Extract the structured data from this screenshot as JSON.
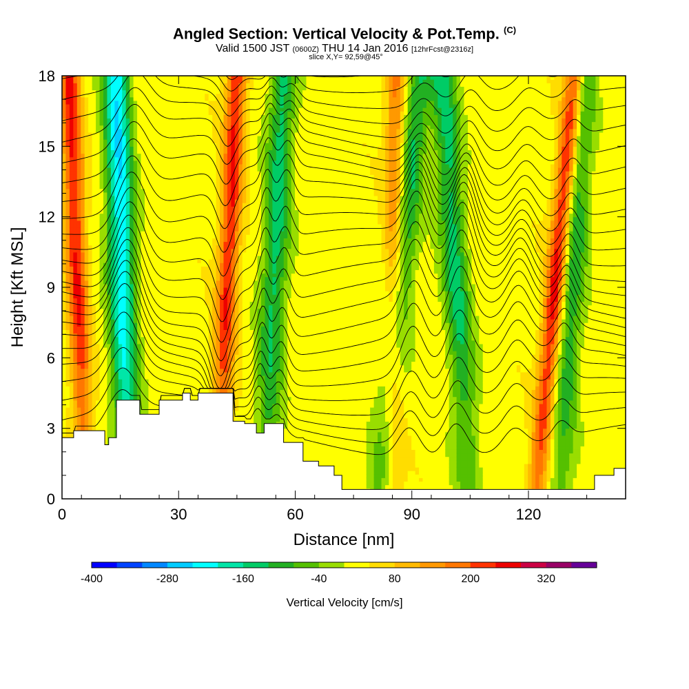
{
  "header": {
    "title": "Angled Section: Vertical Velocity & Pot.Temp.",
    "copyright": "(C)",
    "valid_prefix": "Valid 1500 JST",
    "valid_utc": "(0600Z)",
    "valid_date": "THU 14 Jan 2016",
    "forecast": "[12hrFcst@2316z]",
    "slice": "slice X,Y= 92,59@45°"
  },
  "chart_data": {
    "type": "heatmap",
    "title": "Angled Section: Vertical Velocity & Pot.Temp.",
    "xlabel": "Distance [nm]",
    "ylabel": "Height [Kft MSL]",
    "xlim": [
      0,
      145
    ],
    "ylim": [
      0,
      18
    ],
    "x_ticks": [
      0,
      30,
      60,
      90,
      120
    ],
    "y_ticks": [
      0,
      3,
      6,
      9,
      12,
      15,
      18
    ],
    "grid": false,
    "field": "Vertical Velocity [cm/s]",
    "contours": "Potential Temperature",
    "colorbar": {
      "title": "Vertical Velocity [cm/s]",
      "levels": [
        -400,
        -360,
        -320,
        -280,
        -240,
        -200,
        -160,
        -120,
        -80,
        -40,
        0,
        40,
        80,
        120,
        160,
        200,
        240,
        280,
        320,
        360
      ],
      "tick_labels": [
        "-400",
        "-280",
        "-160",
        "-40",
        "80",
        "200",
        "320"
      ],
      "colors": [
        "#0000ff",
        "#0044ff",
        "#0088ff",
        "#00ccff",
        "#00ffff",
        "#00e6a8",
        "#00cc66",
        "#22b022",
        "#55c000",
        "#99dd00",
        "#ffff00",
        "#ffdd00",
        "#ffbb00",
        "#ff9900",
        "#ff7700",
        "#ff3300",
        "#ee0000",
        "#cc0044",
        "#990066",
        "#660099"
      ]
    },
    "updraft_bands": [
      {
        "x_low": 6,
        "x_top": 2,
        "peak": 220
      },
      {
        "x_low": 40,
        "x_top": 45,
        "peak": 220
      },
      {
        "x_low": 85,
        "x_top": 86,
        "peak": 150
      },
      {
        "x_low": 122,
        "x_top": 132,
        "peak": 260
      }
    ],
    "downdraft_bands": [
      {
        "x_low": 17,
        "x_top": 14,
        "peak": -260
      },
      {
        "x_low": 52,
        "x_top": 57,
        "peak": -160
      },
      {
        "x_low": 82,
        "x_top": 92,
        "peak": -150
      },
      {
        "x_low": 105,
        "x_top": 98,
        "peak": -160
      },
      {
        "x_low": 128,
        "x_top": 134,
        "peak": -150
      }
    ],
    "terrain_kft": [
      [
        0,
        2.6
      ],
      [
        3,
        2.9
      ],
      [
        10,
        2.9
      ],
      [
        11,
        2.3
      ],
      [
        12,
        2.6
      ],
      [
        14,
        4.2
      ],
      [
        18,
        4.2
      ],
      [
        20,
        3.6
      ],
      [
        23,
        3.6
      ],
      [
        25,
        4.2
      ],
      [
        31,
        4.5
      ],
      [
        33,
        4.2
      ],
      [
        35,
        4.5
      ],
      [
        41,
        4.5
      ],
      [
        44,
        3.3
      ],
      [
        47,
        3.2
      ],
      [
        50,
        2.8
      ],
      [
        52,
        3.2
      ],
      [
        57,
        2.4
      ],
      [
        62,
        1.6
      ],
      [
        66,
        1.4
      ],
      [
        70,
        1.0
      ],
      [
        72,
        0.4
      ],
      [
        84,
        0.4
      ],
      [
        86,
        0.4
      ],
      [
        113,
        0.4
      ],
      [
        126,
        0.4
      ],
      [
        137,
        1.0
      ],
      [
        142,
        1.3
      ],
      [
        145,
        1.3
      ]
    ]
  }
}
